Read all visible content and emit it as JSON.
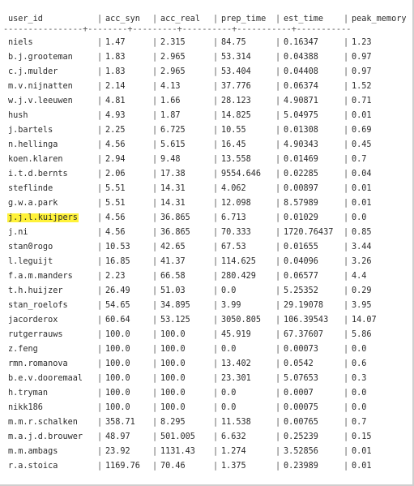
{
  "table": {
    "headers": [
      "user_id",
      "acc_syn",
      "acc_real",
      "prep_time",
      "est_time",
      "peak_memory"
    ],
    "separator": "----------------+--------+---------+----------+-----------+-----------",
    "highlight_color": "#fff23a",
    "highlighted_row": 13,
    "rows": [
      [
        "niels",
        "1.47",
        "2.315",
        "84.75",
        "0.16347",
        "1.23"
      ],
      [
        "b.j.grooteman",
        "1.83",
        "2.965",
        "53.314",
        "0.04388",
        "0.97"
      ],
      [
        "c.j.mulder",
        "1.83",
        "2.965",
        "53.404",
        "0.04408",
        "0.97"
      ],
      [
        "m.v.nijnatten",
        "2.14",
        "4.13",
        "37.776",
        "0.06374",
        "1.52"
      ],
      [
        "w.j.v.leeuwen",
        "4.81",
        "1.66",
        "28.123",
        "4.90871",
        "0.71"
      ],
      [
        "hush",
        "4.93",
        "1.87",
        "14.825",
        "5.04975",
        "0.01"
      ],
      [
        "j.bartels",
        "2.25",
        "6.725",
        "10.55",
        "0.01308",
        "0.69"
      ],
      [
        "n.hellinga",
        "4.56",
        "5.615",
        "16.45",
        "4.90343",
        "0.45"
      ],
      [
        "koen.klaren",
        "2.94",
        "9.48",
        "13.558",
        "0.01469",
        "0.7"
      ],
      [
        "i.t.d.bernts",
        "2.06",
        "17.38",
        "9554.646",
        "0.02285",
        "0.04"
      ],
      [
        "steflinde",
        "5.51",
        "14.31",
        "4.062",
        "0.00897",
        "0.01"
      ],
      [
        "g.w.a.park",
        "5.51",
        "14.31",
        "12.098",
        "8.57989",
        "0.01"
      ],
      [
        "j.j.l.kuijpers",
        "4.56",
        "36.865",
        "6.713",
        "0.01029",
        "0.0"
      ],
      [
        "j.ni",
        "4.56",
        "36.865",
        "70.333",
        "1720.76437",
        "0.85"
      ],
      [
        "stan0rogo",
        "10.53",
        "42.65",
        "67.53",
        "0.01655",
        "3.44"
      ],
      [
        "l.leguijt",
        "16.85",
        "41.37",
        "114.625",
        "0.04096",
        "3.26"
      ],
      [
        "f.a.m.manders",
        "2.23",
        "66.58",
        "280.429",
        "0.06577",
        "4.4"
      ],
      [
        "t.h.huijzer",
        "26.49",
        "51.03",
        "0.0",
        "5.25352",
        "0.29"
      ],
      [
        "stan_roelofs",
        "54.65",
        "34.895",
        "3.99",
        "29.19078",
        "3.95"
      ],
      [
        "jacorderox",
        "60.64",
        "53.125",
        "3050.805",
        "106.39543",
        "14.07"
      ],
      [
        "rutgerrauws",
        "100.0",
        "100.0",
        "45.919",
        "67.37607",
        "5.86"
      ],
      [
        "z.feng",
        "100.0",
        "100.0",
        "0.0",
        "0.00073",
        "0.0"
      ],
      [
        "rmn.romanova",
        "100.0",
        "100.0",
        "13.402",
        "0.0542",
        "0.6"
      ],
      [
        "b.e.v.dooremaal",
        "100.0",
        "100.0",
        "23.301",
        "5.07653",
        "0.3"
      ],
      [
        "h.tryman",
        "100.0",
        "100.0",
        "0.0",
        "0.0007",
        "0.0"
      ],
      [
        "nikk186",
        "100.0",
        "100.0",
        "0.0",
        "0.00075",
        "0.0"
      ],
      [
        "m.m.r.schalken",
        "358.71",
        "8.295",
        "11.538",
        "0.00765",
        "0.7"
      ],
      [
        "m.a.j.d.brouwer",
        "48.97",
        "501.005",
        "6.632",
        "0.25239",
        "0.15"
      ],
      [
        "m.m.ambags",
        "23.92",
        "1131.43",
        "1.274",
        "3.52856",
        "0.01"
      ],
      [
        "r.a.stoica",
        "1169.76",
        "70.46",
        "1.375",
        "0.23989",
        "0.01"
      ]
    ]
  }
}
